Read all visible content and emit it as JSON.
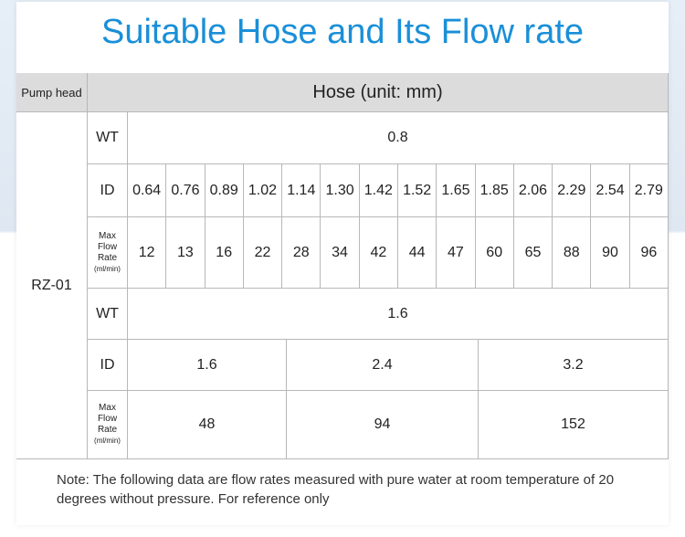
{
  "title": "Suitable Hose and Its Flow rate",
  "table": {
    "header": [
      "Pump head",
      "Hose (unit: mm)"
    ],
    "pump_head": "RZ-01",
    "groups": [
      {
        "wt_label": "WT",
        "wt": "0.8",
        "id_label": "ID",
        "ids": [
          "0.64",
          "0.76",
          "0.89",
          "1.02",
          "1.14",
          "1.30",
          "1.42",
          "1.52",
          "1.65",
          "1.85",
          "2.06",
          "2.29",
          "2.54",
          "2.79"
        ],
        "flow_label": "Max Flow Rate",
        "flow_unit": "(ml/min)",
        "flows": [
          "12",
          "13",
          "16",
          "22",
          "28",
          "34",
          "42",
          "44",
          "47",
          "60",
          "65",
          "88",
          "90",
          "96"
        ]
      },
      {
        "wt_label": "WT",
        "wt": "1.6",
        "id_label": "ID",
        "ids": [
          "1.6",
          "2.4",
          "3.2"
        ],
        "flow_label": "Max Flow Rate",
        "flow_unit": "(ml/min)",
        "flows": [
          "48",
          "94",
          "152"
        ]
      }
    ]
  },
  "note": "Note: The following data are flow rates measured with pure water at room temperature of 20 degrees without pressure. For reference only"
}
